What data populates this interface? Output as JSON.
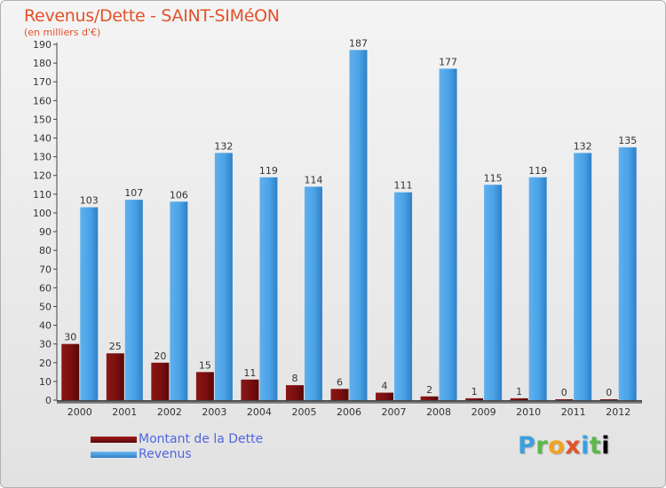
{
  "header": {
    "title": "Revenus/Dette - SAINT-SIMéON",
    "subtitle": "(en milliers d'€)"
  },
  "legend": {
    "dette_label": "Montant de la Dette",
    "revenus_label": "Revenus"
  },
  "logo": "Proxiti",
  "colors": {
    "dette": "#7a0f0f",
    "revenus": "#3c95de"
  },
  "chart_data": {
    "type": "bar",
    "title": "Revenus/Dette - SAINT-SIMéON",
    "subtitle": "(en milliers d'€)",
    "categories": [
      "2000",
      "2001",
      "2002",
      "2003",
      "2004",
      "2005",
      "2006",
      "2007",
      "2008",
      "2009",
      "2010",
      "2011",
      "2012"
    ],
    "series": [
      {
        "name": "Montant de la Dette",
        "values": [
          30,
          25,
          20,
          15,
          11,
          8,
          6,
          4,
          2,
          1,
          1,
          0,
          0
        ]
      },
      {
        "name": "Revenus",
        "values": [
          103,
          107,
          106,
          132,
          119,
          114,
          187,
          111,
          177,
          115,
          119,
          132,
          135
        ]
      }
    ],
    "ylim": [
      0,
      190
    ],
    "ytick_step": 10,
    "grid": false,
    "legend_position": "bottom-left"
  }
}
